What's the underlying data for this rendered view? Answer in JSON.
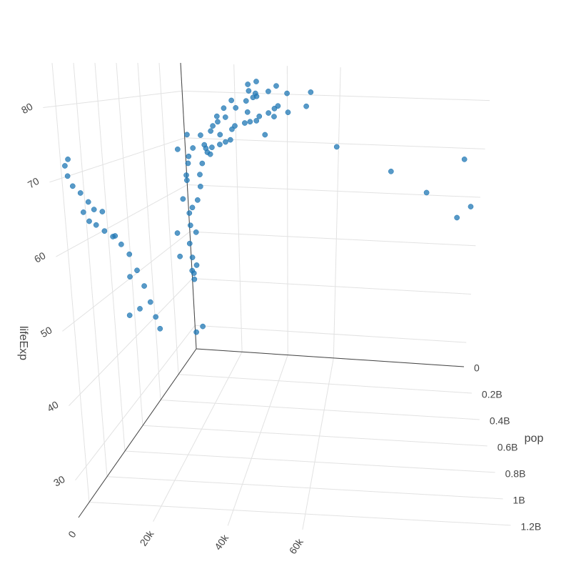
{
  "chart_data": {
    "type": "scatter3d",
    "color": "#1f77b4",
    "yaxis_title": "pop",
    "zaxis_title": "lifeExp",
    "xlim": [
      0,
      117000
    ],
    "ylim": [
      0,
      1320000000
    ],
    "zlim": [
      25,
      86
    ],
    "xticks": [
      0,
      {
        "value": 20000,
        "label": "20k"
      },
      {
        "value": 40000,
        "label": "40k"
      },
      {
        "value": 60000,
        "label": "60k"
      }
    ],
    "yticks": [
      0,
      {
        "value": 200000000,
        "label": "0.2B"
      },
      {
        "value": 400000000,
        "label": "0.4B"
      },
      {
        "value": 600000000,
        "label": "0.6B"
      },
      {
        "value": 800000000,
        "label": "0.8B"
      },
      {
        "value": 1000000000,
        "label": "1B"
      },
      {
        "value": 1200000000,
        "label": "1.2B"
      }
    ],
    "zticks": [
      30,
      40,
      50,
      60,
      70,
      80
    ],
    "grid": true,
    "x": [
      400,
      576,
      487,
      613,
      676,
      741,
      962,
      1378,
      1655,
      2289,
      3119,
      4959,
      547,
      590,
      658,
      701,
      724,
      813,
      856,
      977,
      1164,
      1458,
      1747,
      2452,
      108382,
      113523,
      95458,
      80895,
      109348,
      59265,
      31354,
      28118,
      34933,
      40301,
      35110,
      47307,
      13990,
      16173,
      19530,
      21966,
      24072,
      25010,
      29884,
      32004,
      35564,
      39098,
      42952,
      3217,
      4318,
      6577,
      9847,
      14778,
      16610,
      19384,
      22376,
      30299,
      28816,
      28605,
      31656,
      779,
      1601,
      2449,
      3521,
      5911,
      10040,
      8343,
      1062,
      853,
      2677,
      4293,
      6000,
      7500,
      9000,
      12000,
      15000,
      18000,
      22000,
      26000,
      30000,
      33000,
      36000,
      28000,
      40000,
      49000,
      25000,
      20000,
      14000,
      1500,
      2000,
      700,
      900,
      3000,
      1200,
      3500,
      5000,
      700,
      1000,
      4000,
      8000
    ],
    "y": [
      556000000,
      637000000,
      665000000,
      754000000,
      862000000,
      943000000,
      1000000000,
      1084000000,
      1164000000,
      1230000000,
      1280000000,
      1319000000,
      372000000,
      409000000,
      454000000,
      506000000,
      567000000,
      634000000,
      708000000,
      788000000,
      872000000,
      959000000,
      1034000000,
      1110000000,
      160000,
      212846,
      358266,
      575003,
      841934,
      1140357,
      1497494,
      1891487,
      1418095,
      1765345,
      2111561,
      2505559,
      157000000,
      171000000,
      186000000,
      198000000,
      210000000,
      220000000,
      232000000,
      242000000,
      256000000,
      272000000,
      301000000,
      86000000,
      91000000,
      95000000,
      100000000,
      107000000,
      113000000,
      118000000,
      122000000,
      124000000,
      125000000,
      127000000,
      127000000,
      8400000,
      1280000,
      9300000,
      4200000,
      17900000,
      8700000,
      6900000,
      6300000,
      2100000,
      3200000,
      12000000,
      20000000,
      30000000,
      40000000,
      50000000,
      56000000,
      57000000,
      58000000,
      60000000,
      62000000,
      8000000,
      7500000,
      4500000,
      4600000,
      4600000,
      10000000,
      10000000,
      5000000,
      25000000,
      40000000,
      15000000,
      30000000,
      70000000,
      80000000,
      90000000,
      100000000,
      130000000,
      150000000,
      180000000,
      190000000
    ],
    "z": [
      44,
      50.5,
      44.5,
      58.4,
      63.1,
      64,
      65.5,
      67.3,
      68.7,
      70.4,
      72,
      73,
      37.4,
      40.2,
      43.6,
      47.2,
      50.7,
      54.2,
      56.6,
      58.6,
      60.2,
      61.8,
      62.9,
      64.7,
      55.6,
      58,
      60.5,
      64.6,
      67.7,
      69.3,
      71.3,
      74.2,
      75.2,
      76.2,
      76.9,
      77.6,
      68.4,
      69.5,
      70.2,
      70.8,
      71.3,
      73.4,
      74.7,
      75,
      76.1,
      76.8,
      78.2,
      63,
      65.5,
      68.7,
      71.4,
      73.4,
      75.4,
      77.1,
      78.7,
      79.4,
      80.7,
      82,
      82.6,
      28.8,
      55.2,
      43.1,
      30,
      62.5,
      66.8,
      68,
      40,
      41.2,
      50,
      57,
      60,
      65,
      69,
      72,
      74,
      75,
      77,
      78.5,
      79.5,
      80.5,
      81.7,
      80,
      80.2,
      80.6,
      76,
      73,
      71,
      45,
      52,
      42,
      48,
      55,
      58,
      62,
      67,
      47,
      52,
      69,
      72
    ]
  }
}
